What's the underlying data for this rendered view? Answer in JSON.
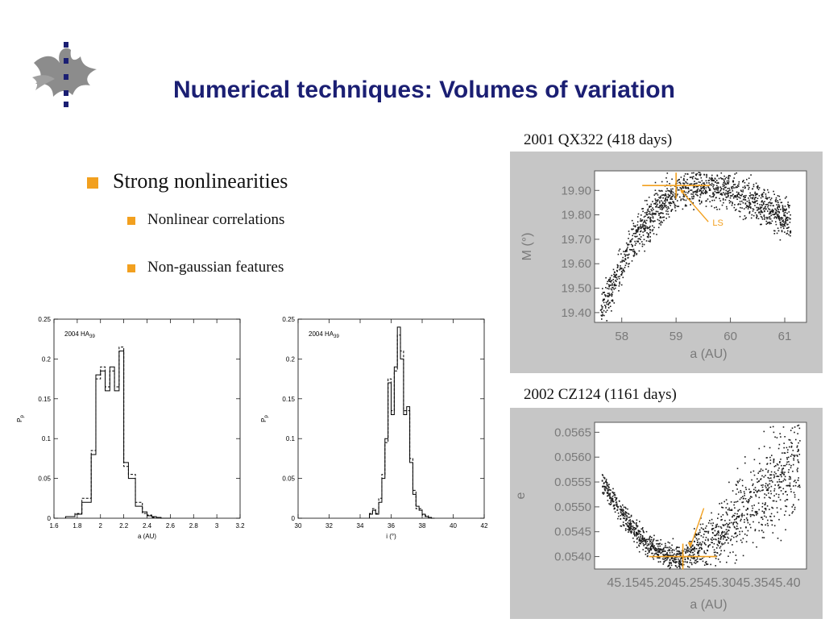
{
  "slide": {
    "title": "Numerical techniques: Volumes of variation",
    "bullets": [
      {
        "label": "Strong nonlinearities",
        "level": 1
      },
      {
        "label": "Nonlinear correlations",
        "level": 2
      },
      {
        "label": "Non-gaussian features",
        "level": 2
      }
    ],
    "accent_color": "#f2a01f",
    "title_color": "#1b1f73"
  },
  "chart_data": [
    {
      "type": "bar",
      "name": "histogram-a",
      "annotation": "2004 HA",
      "annotation_sub": "39",
      "xlabel": "a (AU)",
      "ylabel": "P",
      "ylabel_sub": "p",
      "xlim": [
        1.6,
        3.2
      ],
      "ylim": [
        0,
        0.25
      ],
      "xticks": [
        "1.6",
        "1.8",
        "2",
        "2.2",
        "2.4",
        "2.6",
        "2.8",
        "3",
        "3.2"
      ],
      "yticks": [
        "0",
        "0.05",
        "0.1",
        "0.15",
        "0.2",
        "0.25"
      ],
      "bin_edges": [
        1.7,
        1.78,
        1.84,
        1.92,
        1.96,
        2.0,
        2.04,
        2.08,
        2.12,
        2.16,
        2.2,
        2.24,
        2.3,
        2.36,
        2.4,
        2.44,
        2.48,
        2.52,
        2.56,
        2.6
      ],
      "series": [
        {
          "style": "solid",
          "values": [
            0.002,
            0.005,
            0.02,
            0.08,
            0.18,
            0.185,
            0.16,
            0.19,
            0.16,
            0.21,
            0.07,
            0.05,
            0.015,
            0.008,
            0.003,
            0.002,
            0.001,
            0.0,
            0.0
          ]
        },
        {
          "style": "dashed",
          "values": [
            0.002,
            0.006,
            0.025,
            0.085,
            0.175,
            0.19,
            0.165,
            0.185,
            0.165,
            0.215,
            0.065,
            0.055,
            0.02,
            0.006,
            0.004,
            0.001,
            0.001,
            0.0,
            0.0
          ]
        }
      ]
    },
    {
      "type": "bar",
      "name": "histogram-i",
      "annotation": "2004 HA",
      "annotation_sub": "39",
      "xlabel": "i (°)",
      "ylabel": "P",
      "ylabel_sub": "p",
      "xlim": [
        30,
        42
      ],
      "ylim": [
        0,
        0.25
      ],
      "xticks": [
        "30",
        "32",
        "34",
        "36",
        "38",
        "40",
        "42"
      ],
      "yticks": [
        "0",
        "0.05",
        "0.1",
        "0.15",
        "0.2",
        "0.25"
      ],
      "bin_edges": [
        34.6,
        34.8,
        35.0,
        35.2,
        35.4,
        35.6,
        35.8,
        36.0,
        36.2,
        36.4,
        36.6,
        36.8,
        37.0,
        37.2,
        37.4,
        37.6,
        37.8,
        38.0,
        38.2,
        38.4,
        38.6,
        38.8
      ],
      "series": [
        {
          "style": "solid",
          "values": [
            0.005,
            0.01,
            0.005,
            0.02,
            0.05,
            0.1,
            0.17,
            0.13,
            0.19,
            0.24,
            0.2,
            0.13,
            0.14,
            0.07,
            0.03,
            0.015,
            0.01,
            0.005,
            0.002,
            0.001,
            0.0
          ]
        },
        {
          "style": "dashed",
          "values": [
            0.006,
            0.012,
            0.006,
            0.025,
            0.055,
            0.095,
            0.175,
            0.135,
            0.185,
            0.23,
            0.21,
            0.135,
            0.135,
            0.075,
            0.035,
            0.012,
            0.012,
            0.004,
            0.003,
            0.001,
            0.0
          ]
        }
      ]
    },
    {
      "type": "scatter",
      "name": "qx322-scatter",
      "caption": "2001 QX322 (418 days)",
      "xlabel": "a (AU)",
      "ylabel": "M (°)",
      "xlim": [
        57.5,
        61.4
      ],
      "ylim": [
        19.36,
        19.98
      ],
      "xticks": [
        "58",
        "59",
        "60",
        "61"
      ],
      "yticks": [
        "19.40",
        "19.50",
        "19.60",
        "19.70",
        "19.80",
        "19.90"
      ],
      "distribution": {
        "kind": "arc",
        "x_from": 57.6,
        "x_to": 61.1,
        "peak_x": 59.4,
        "peak_y": 19.92,
        "end_y_left": 19.39,
        "end_y_right": 19.77,
        "spread": 0.04
      },
      "marker": {
        "x": 59.0,
        "y": 19.92,
        "label": "LS"
      },
      "annotation_color": "#f2a01f"
    },
    {
      "type": "scatter",
      "name": "cz124-scatter",
      "caption": "2002 CZ124 (1161 days)",
      "xlabel": "a (AU)",
      "ylabel": "e",
      "xlim": [
        45.12,
        45.42
      ],
      "ylim": [
        0.05375,
        0.0567
      ],
      "xticks": [
        "45.15",
        "45.20",
        "45.25",
        "45.30",
        "45.35",
        "45.40"
      ],
      "xticks_text": "45.1545.2045.2545.3045.3545.40",
      "yticks": [
        "0.0540",
        "0.0545",
        "0.0550",
        "0.0555",
        "0.0560",
        "0.0565"
      ],
      "distribution": {
        "kind": "valley",
        "x_from": 45.13,
        "x_to": 45.41,
        "min_x": 45.24,
        "min_y": 0.054,
        "end_y_left": 0.05555,
        "end_y_right": 0.05605,
        "spread": 0.00012
      },
      "marker": {
        "x": 45.245,
        "y": 0.054
      },
      "annotation_color": "#f2a01f"
    }
  ]
}
